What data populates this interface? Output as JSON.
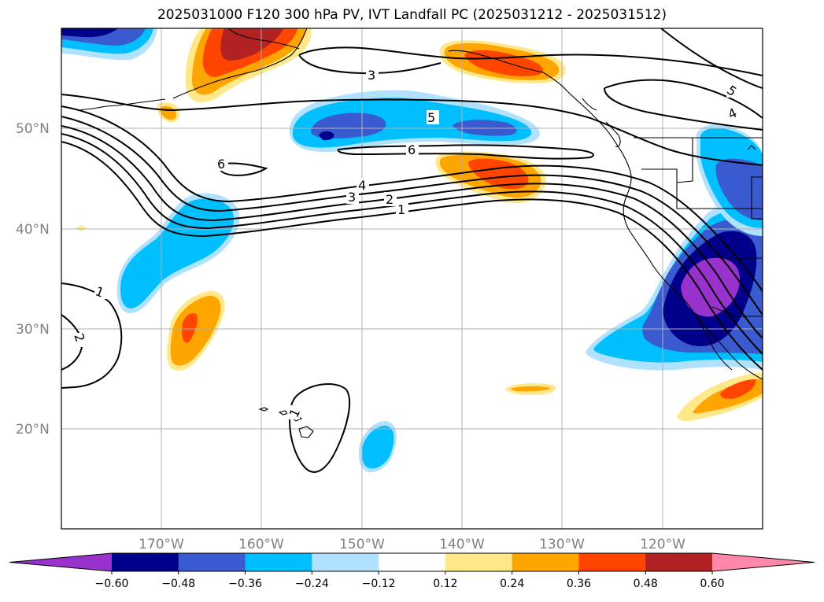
{
  "title": "2025031000 F120 300 hPa PV, IVT Landfall PC (2025031212 - 2025031512)",
  "map": {
    "projection": "PlateCarree",
    "lon_range": [
      -180,
      -110
    ],
    "lat_range": [
      10,
      60
    ],
    "lat_ticks": [
      "20°N",
      "30°N",
      "40°N",
      "50°N"
    ],
    "lon_ticks": [
      "170°W",
      "160°W",
      "150°W",
      "140°W",
      "130°W",
      "120°W"
    ],
    "gridlines": true
  },
  "pv_contour_labels": [
    "1",
    "2",
    "3",
    "4",
    "5",
    "6",
    "3",
    "5",
    "4",
    "6",
    "1",
    "2",
    "1"
  ],
  "colorbar": {
    "orientation": "horizontal",
    "extend": "both",
    "levels": [
      "-0.60",
      "-0.48",
      "-0.36",
      "-0.24",
      "-0.12",
      "0.12",
      "0.24",
      "0.36",
      "0.48",
      "0.60"
    ],
    "colors": [
      "#9932cc",
      "#00008b",
      "#3a5bd0",
      "#00bfff",
      "#b0e2ff",
      "#ffffff",
      "#ffe88a",
      "#ffa500",
      "#ff4500",
      "#b22222",
      "#ff88aa"
    ]
  },
  "ivt_pc_fill_colors": {
    "neg_strong": "#9932cc",
    "neg_3": "#00008b",
    "neg_2": "#3a5bd0",
    "neg_1": "#00bfff",
    "neg_0": "#b0e2ff",
    "pos_0": "#ffe88a",
    "pos_1": "#ffa500",
    "pos_2": "#ff4500",
    "pos_3": "#b22222"
  }
}
